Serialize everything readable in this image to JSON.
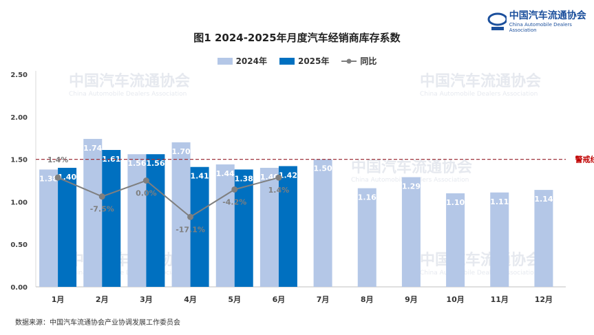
{
  "chart_data": {
    "type": "bar",
    "title": "图1  2024-2025年月度汽车经销商库存系数",
    "categories": [
      "1月",
      "2月",
      "3月",
      "4月",
      "5月",
      "6月",
      "7月",
      "8月",
      "9月",
      "10月",
      "11月",
      "12月"
    ],
    "series": [
      {
        "name": "2024年",
        "type": "bar",
        "color": "#b4c7e7",
        "values": [
          1.38,
          1.74,
          1.56,
          1.7,
          1.44,
          1.4,
          1.5,
          1.16,
          1.29,
          1.1,
          1.11,
          1.14
        ]
      },
      {
        "name": "2025年",
        "type": "bar",
        "color": "#0070c0",
        "values": [
          1.4,
          1.61,
          1.56,
          1.41,
          1.38,
          1.42,
          null,
          null,
          null,
          null,
          null,
          null
        ]
      },
      {
        "name": "同比",
        "type": "line",
        "color": "#7f7f7f",
        "axis": "secondary",
        "values": [
          1.4,
          -7.5,
          0.0,
          -17.1,
          -4.2,
          1.4,
          null,
          null,
          null,
          null,
          null,
          null
        ],
        "labels": [
          "1.4%",
          "-7.5%",
          "0.0%",
          "-17.1%",
          "-4.2%",
          "1.4%"
        ]
      }
    ],
    "yticks": [
      "0.00",
      "0.50",
      "1.00",
      "1.50",
      "2.00",
      "2.50"
    ],
    "ylim": [
      0,
      2.5
    ],
    "y2lim": [
      -50,
      50
    ],
    "reference_line": {
      "value": 1.5,
      "label": "警戒线",
      "color": "#c00000",
      "style": "dashed"
    },
    "legend_placement": "top",
    "grid": false
  },
  "logo": {
    "cn": "中国汽车流通协会",
    "en": "China Automobile Dealers Association",
    "mark": "CADA"
  },
  "watermark": {
    "cn": "中国汽车流通协会",
    "en": "China Automobile Dealers Association"
  },
  "source": "数据来源：中国汽车流通协会产业协调发展工作委员会"
}
